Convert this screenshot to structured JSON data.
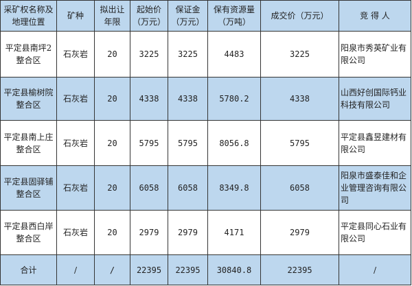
{
  "headers": [
    "采矿权名称及地理位置",
    "矿种",
    "拟出让年限",
    "起始价（万元）",
    "保证金（万元）",
    "保有资源量（万吨）",
    "成交价（万元）",
    "竞 得 人"
  ],
  "rows": [
    {
      "name": "平定县南坪2整合区",
      "mineral": "石灰岩",
      "years": "20",
      "start": "3225",
      "deposit": "3225",
      "reserve": "4483",
      "deal": "3225",
      "winner": "阳泉市秀英矿业有限公司"
    },
    {
      "name": "平定县榆树院整合区",
      "mineral": "石灰岩",
      "years": "20",
      "start": "4338",
      "deposit": "4338",
      "reserve": "5780.2",
      "deal": "4338",
      "winner": "山西好创国际钙业科技有限公司"
    },
    {
      "name": "平定县南上庄整合区",
      "mineral": "石灰岩",
      "years": "20",
      "start": "5795",
      "deposit": "5795",
      "reserve": "8056.8",
      "deal": "5795",
      "winner": "平定县鑫昱建材有限公司"
    },
    {
      "name": "平定县固驿铺整合区",
      "mineral": "石灰岩",
      "years": "20",
      "start": "6058",
      "deposit": "6058",
      "reserve": "8349.8",
      "deal": "6058",
      "winner": "阳泉市盛泰佳和企业管理咨询有限公司"
    },
    {
      "name": "平定县西白岸整合区",
      "mineral": "石灰岩",
      "years": "20",
      "start": "2979",
      "deposit": "2979",
      "reserve": "4171",
      "deal": "2979",
      "winner": "平定县同心石业有限公司"
    }
  ],
  "total": {
    "name": "合计",
    "mineral": "/",
    "years": "/",
    "start": "22395",
    "deposit": "22395",
    "reserve": "30840.8",
    "deal": "22395",
    "winner": "/"
  },
  "colors": {
    "header_bg": "#bdd7ee",
    "border": "#333333"
  }
}
